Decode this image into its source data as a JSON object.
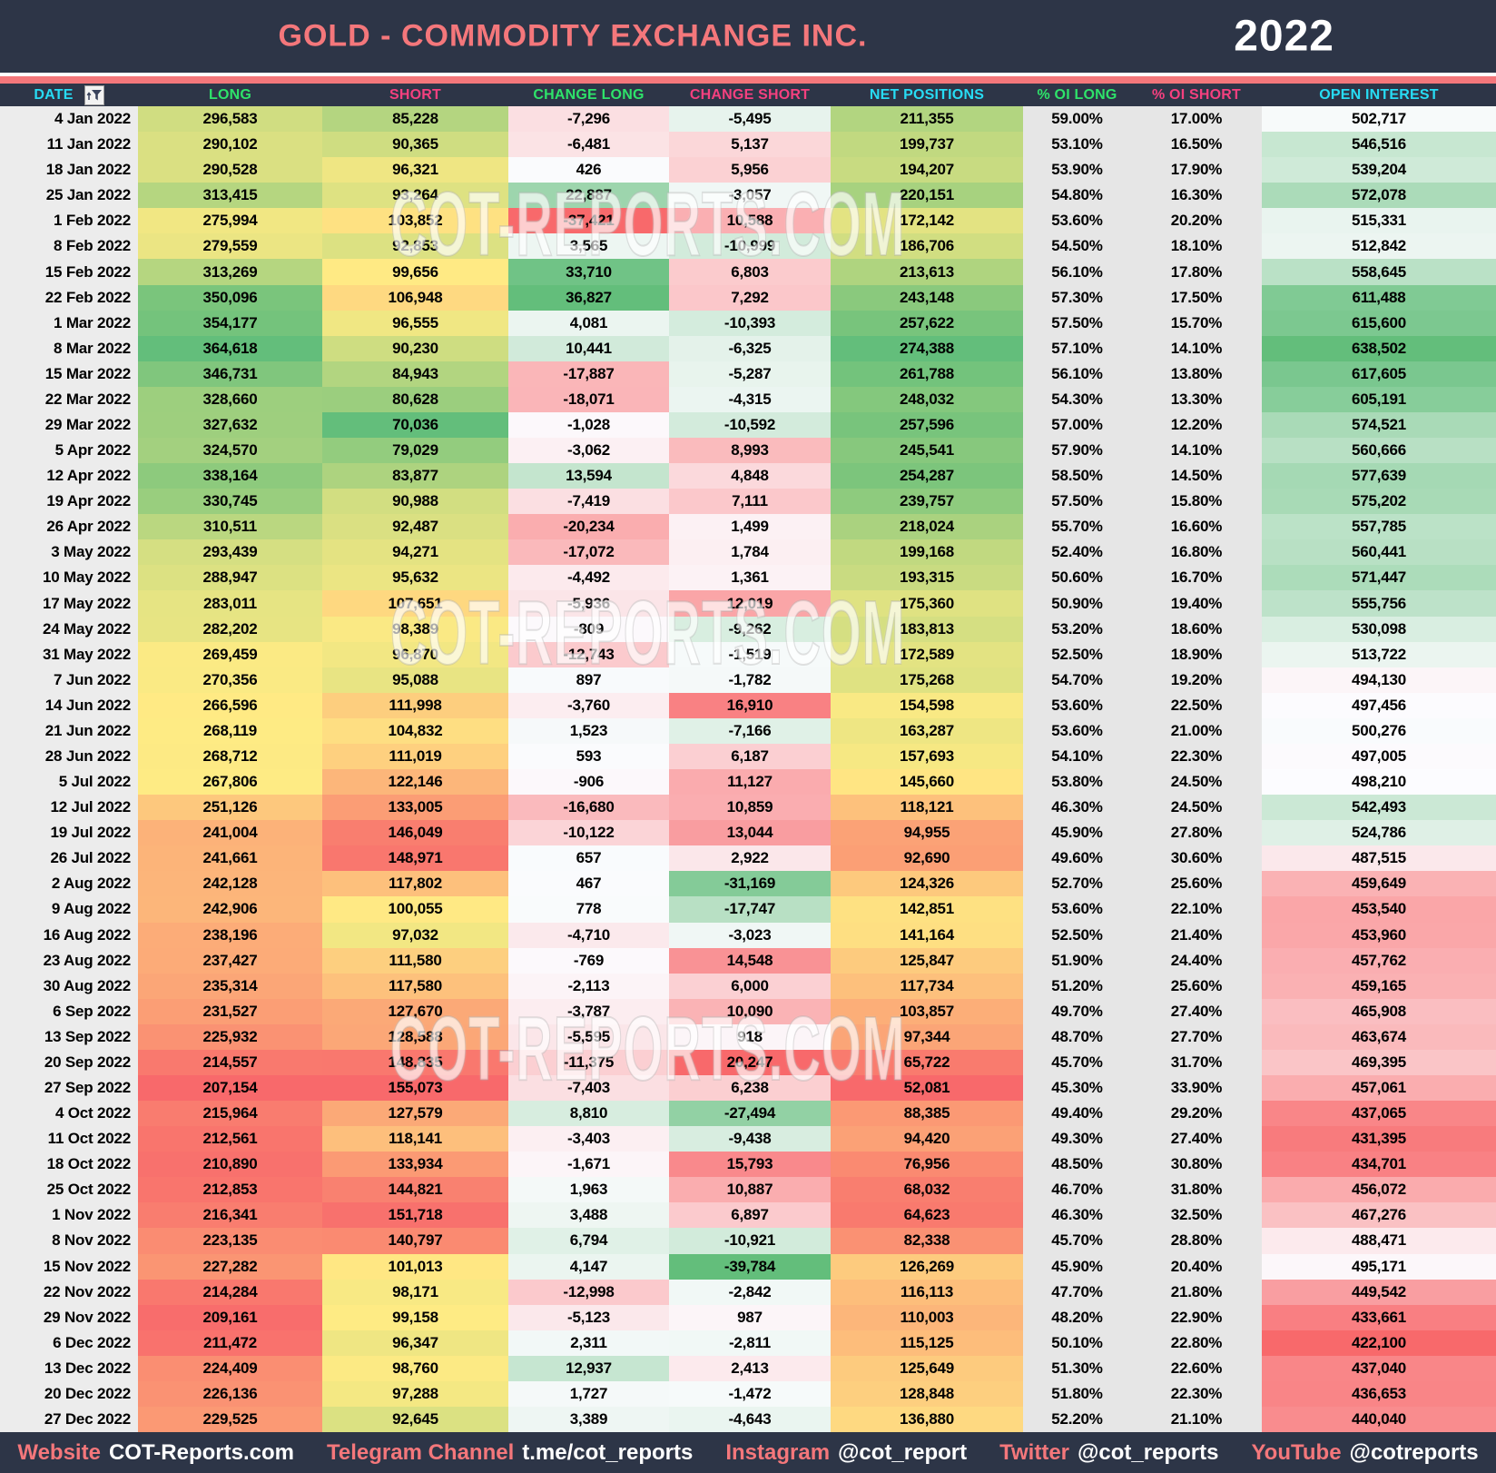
{
  "header": {
    "title": "GOLD - COMMODITY EXCHANGE INC.",
    "year": "2022"
  },
  "watermark": {
    "text": "COT-REPORTS.COM"
  },
  "icons": {
    "date_filter": "funnel-with-up-arrow"
  },
  "theme": {
    "navy": "#2d3547",
    "salmon": "#f4777b",
    "header_cyan": "#27dcf4",
    "header_green": "#2ee36a",
    "header_pink": "#f5407f",
    "date_bg": "#ececec",
    "pct_bg": "#e6e6e6",
    "scale_red": "#F8696B",
    "scale_yellow": "#FFEB84",
    "scale_green": "#63BE7B",
    "scale_white": "#FCFCFF"
  },
  "chart_data": {
    "type": "table",
    "title": "GOLD - COMMODITY EXCHANGE INC.",
    "year": "2022",
    "columns": [
      "DATE",
      "LONG",
      "SHORT",
      "CHANGE LONG",
      "CHANGE SHORT",
      "NET POSITIONS",
      "% OI LONG",
      "% OI SHORT",
      "OPEN INTEREST"
    ],
    "header_text_colors": [
      "cyan",
      "green",
      "pink",
      "green",
      "pink",
      "cyan",
      "green",
      "pink",
      "cyan"
    ],
    "heatmap_note": "3-color scales: LONG/NET red-yellow-green (median mid), SHORT reversed, CHANGE LONG red-white-green (zero mid), CHANGE SHORT reversed, OPEN INTEREST red-white-green (median mid)",
    "rows": [
      [
        "4 Jan 2022",
        296583,
        85228,
        -7296,
        -5495,
        211355,
        "59.00%",
        "17.00%",
        502717
      ],
      [
        "11 Jan 2022",
        290102,
        90365,
        -6481,
        5137,
        199737,
        "53.10%",
        "16.50%",
        546516
      ],
      [
        "18 Jan 2022",
        290528,
        96321,
        426,
        5956,
        194207,
        "53.90%",
        "17.90%",
        539204
      ],
      [
        "25 Jan 2022",
        313415,
        93264,
        22887,
        -3057,
        220151,
        "54.80%",
        "16.30%",
        572078
      ],
      [
        "1 Feb 2022",
        275994,
        103852,
        -37421,
        10588,
        172142,
        "53.60%",
        "20.20%",
        515331
      ],
      [
        "8 Feb 2022",
        279559,
        92853,
        3565,
        -10999,
        186706,
        "54.50%",
        "18.10%",
        512842
      ],
      [
        "15 Feb 2022",
        313269,
        99656,
        33710,
        6803,
        213613,
        "56.10%",
        "17.80%",
        558645
      ],
      [
        "22 Feb 2022",
        350096,
        106948,
        36827,
        7292,
        243148,
        "57.30%",
        "17.50%",
        611488
      ],
      [
        "1 Mar 2022",
        354177,
        96555,
        4081,
        -10393,
        257622,
        "57.50%",
        "15.70%",
        615600
      ],
      [
        "8 Mar 2022",
        364618,
        90230,
        10441,
        -6325,
        274388,
        "57.10%",
        "14.10%",
        638502
      ],
      [
        "15 Mar 2022",
        346731,
        84943,
        -17887,
        -5287,
        261788,
        "56.10%",
        "13.80%",
        617605
      ],
      [
        "22 Mar 2022",
        328660,
        80628,
        -18071,
        -4315,
        248032,
        "54.30%",
        "13.30%",
        605191
      ],
      [
        "29 Mar 2022",
        327632,
        70036,
        -1028,
        -10592,
        257596,
        "57.00%",
        "12.20%",
        574521
      ],
      [
        "5 Apr 2022",
        324570,
        79029,
        -3062,
        8993,
        245541,
        "57.90%",
        "14.10%",
        560666
      ],
      [
        "12 Apr 2022",
        338164,
        83877,
        13594,
        4848,
        254287,
        "58.50%",
        "14.50%",
        577639
      ],
      [
        "19 Apr 2022",
        330745,
        90988,
        -7419,
        7111,
        239757,
        "57.50%",
        "15.80%",
        575202
      ],
      [
        "26 Apr 2022",
        310511,
        92487,
        -20234,
        1499,
        218024,
        "55.70%",
        "16.60%",
        557785
      ],
      [
        "3 May 2022",
        293439,
        94271,
        -17072,
        1784,
        199168,
        "52.40%",
        "16.80%",
        560441
      ],
      [
        "10 May 2022",
        288947,
        95632,
        -4492,
        1361,
        193315,
        "50.60%",
        "16.70%",
        571447
      ],
      [
        "17 May 2022",
        283011,
        107651,
        -5936,
        12019,
        175360,
        "50.90%",
        "19.40%",
        555756
      ],
      [
        "24 May 2022",
        282202,
        98389,
        -809,
        -9262,
        183813,
        "53.20%",
        "18.60%",
        530098
      ],
      [
        "31 May 2022",
        269459,
        96870,
        -12743,
        -1519,
        172589,
        "52.50%",
        "18.90%",
        513722
      ],
      [
        "7 Jun 2022",
        270356,
        95088,
        897,
        -1782,
        175268,
        "54.70%",
        "19.20%",
        494130
      ],
      [
        "14 Jun 2022",
        266596,
        111998,
        -3760,
        16910,
        154598,
        "53.60%",
        "22.50%",
        497456
      ],
      [
        "21 Jun 2022",
        268119,
        104832,
        1523,
        -7166,
        163287,
        "53.60%",
        "21.00%",
        500276
      ],
      [
        "28 Jun 2022",
        268712,
        111019,
        593,
        6187,
        157693,
        "54.10%",
        "22.30%",
        497005
      ],
      [
        "5 Jul 2022",
        267806,
        122146,
        -906,
        11127,
        145660,
        "53.80%",
        "24.50%",
        498210
      ],
      [
        "12 Jul 2022",
        251126,
        133005,
        -16680,
        10859,
        118121,
        "46.30%",
        "24.50%",
        542493
      ],
      [
        "19 Jul 2022",
        241004,
        146049,
        -10122,
        13044,
        94955,
        "45.90%",
        "27.80%",
        524786
      ],
      [
        "26 Jul 2022",
        241661,
        148971,
        657,
        2922,
        92690,
        "49.60%",
        "30.60%",
        487515
      ],
      [
        "2 Aug 2022",
        242128,
        117802,
        467,
        -31169,
        124326,
        "52.70%",
        "25.60%",
        459649
      ],
      [
        "9 Aug 2022",
        242906,
        100055,
        778,
        -17747,
        142851,
        "53.60%",
        "22.10%",
        453540
      ],
      [
        "16 Aug 2022",
        238196,
        97032,
        -4710,
        -3023,
        141164,
        "52.50%",
        "21.40%",
        453960
      ],
      [
        "23 Aug 2022",
        237427,
        111580,
        -769,
        14548,
        125847,
        "51.90%",
        "24.40%",
        457762
      ],
      [
        "30 Aug 2022",
        235314,
        117580,
        -2113,
        6000,
        117734,
        "51.20%",
        "25.60%",
        459165
      ],
      [
        "6 Sep 2022",
        231527,
        127670,
        -3787,
        10090,
        103857,
        "49.70%",
        "27.40%",
        465908
      ],
      [
        "13 Sep 2022",
        225932,
        128588,
        -5595,
        918,
        97344,
        "48.70%",
        "27.70%",
        463674
      ],
      [
        "20 Sep 2022",
        214557,
        148835,
        -11375,
        20247,
        65722,
        "45.70%",
        "31.70%",
        469395
      ],
      [
        "27 Sep 2022",
        207154,
        155073,
        -7403,
        6238,
        52081,
        "45.30%",
        "33.90%",
        457061
      ],
      [
        "4 Oct 2022",
        215964,
        127579,
        8810,
        -27494,
        88385,
        "49.40%",
        "29.20%",
        437065
      ],
      [
        "11 Oct 2022",
        212561,
        118141,
        -3403,
        -9438,
        94420,
        "49.30%",
        "27.40%",
        431395
      ],
      [
        "18 Oct 2022",
        210890,
        133934,
        -1671,
        15793,
        76956,
        "48.50%",
        "30.80%",
        434701
      ],
      [
        "25 Oct 2022",
        212853,
        144821,
        1963,
        10887,
        68032,
        "46.70%",
        "31.80%",
        456072
      ],
      [
        "1 Nov 2022",
        216341,
        151718,
        3488,
        6897,
        64623,
        "46.30%",
        "32.50%",
        467276
      ],
      [
        "8 Nov 2022",
        223135,
        140797,
        6794,
        -10921,
        82338,
        "45.70%",
        "28.80%",
        488471
      ],
      [
        "15 Nov 2022",
        227282,
        101013,
        4147,
        -39784,
        126269,
        "45.90%",
        "20.40%",
        495171
      ],
      [
        "22 Nov 2022",
        214284,
        98171,
        -12998,
        -2842,
        116113,
        "47.70%",
        "21.80%",
        449542
      ],
      [
        "29 Nov 2022",
        209161,
        99158,
        -5123,
        987,
        110003,
        "48.20%",
        "22.90%",
        433661
      ],
      [
        "6 Dec 2022",
        211472,
        96347,
        2311,
        -2811,
        115125,
        "50.10%",
        "22.80%",
        422100
      ],
      [
        "13 Dec 2022",
        224409,
        98760,
        12937,
        2413,
        125649,
        "51.30%",
        "22.60%",
        437040
      ],
      [
        "20 Dec 2022",
        226136,
        97288,
        1727,
        -1472,
        128848,
        "51.80%",
        "22.30%",
        436653
      ],
      [
        "27 Dec 2022",
        229525,
        92645,
        3389,
        -4643,
        136880,
        "52.20%",
        "21.10%",
        440040
      ]
    ]
  },
  "footer": {
    "items": [
      {
        "label": "Website",
        "value": "COT-Reports.com"
      },
      {
        "label": "Telegram Channel",
        "value": "t.me/cot_reports"
      },
      {
        "label": "Instagram",
        "value": "@cot_report"
      },
      {
        "label": "Twitter",
        "value": "@cot_reports"
      },
      {
        "label": "YouTube",
        "value": "@cotreports"
      }
    ]
  }
}
